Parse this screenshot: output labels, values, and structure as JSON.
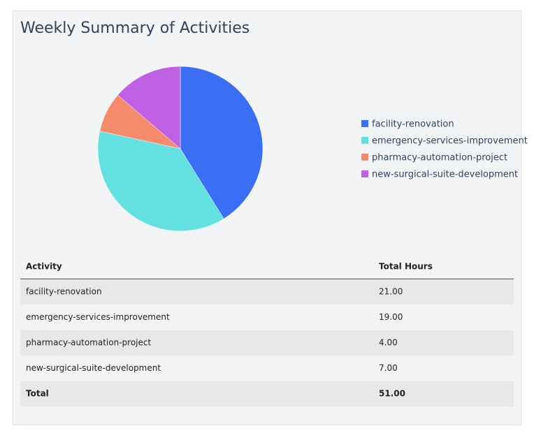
{
  "chart_data": {
    "type": "pie",
    "title": "Weekly Summary of Activities",
    "categories": [
      "facility-renovation",
      "emergency-services-improvement",
      "pharmacy-automation-project",
      "new-surgical-suite-development"
    ],
    "values": [
      21,
      19,
      4,
      7
    ],
    "colors": [
      "#3a6ff5",
      "#63e0e0",
      "#f58a6c",
      "#c061e3"
    ]
  },
  "table": {
    "columns": [
      "Activity",
      "Total Hours"
    ],
    "rows": [
      [
        "facility-renovation",
        "21.00"
      ],
      [
        "emergency-services-improvement",
        "19.00"
      ],
      [
        "pharmacy-automation-project",
        "4.00"
      ],
      [
        "new-surgical-suite-development",
        "7.00"
      ]
    ],
    "total": [
      "Total",
      "51.00"
    ]
  }
}
